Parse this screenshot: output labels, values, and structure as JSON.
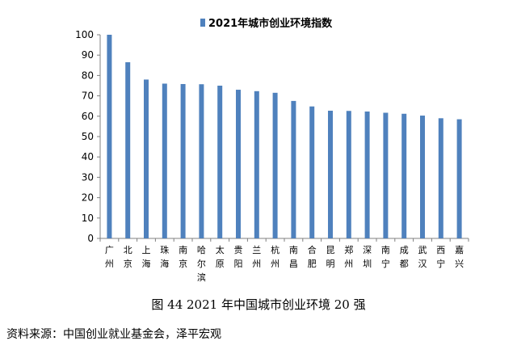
{
  "chart_data": {
    "type": "bar",
    "legend": "2021年城市创业环境指数",
    "legend_position": "top-center",
    "categories": [
      "广州",
      "北京",
      "上海",
      "珠海",
      "南京",
      "哈尔滨",
      "太原",
      "贵阳",
      "兰州",
      "杭州",
      "南昌",
      "合肥",
      "昆明",
      "郑州",
      "深圳",
      "南宁",
      "成都",
      "武汉",
      "西宁",
      "嘉兴"
    ],
    "series": [
      {
        "name": "2021年城市创业环境指数",
        "values": [
          100,
          86.5,
          78,
          76,
          75.8,
          75.7,
          75,
          73,
          72.3,
          71.5,
          67.5,
          64.8,
          62.7,
          62.6,
          62.3,
          61.7,
          61.2,
          60.3,
          59,
          58.5
        ]
      }
    ],
    "ylim": [
      0,
      100
    ],
    "yticks": [
      0,
      10,
      20,
      30,
      40,
      50,
      60,
      70,
      80,
      90,
      100
    ],
    "grid": false,
    "bar_color": "#4f81bd"
  },
  "caption": "图 44 2021 年中国城市创业环境 20 强",
  "source": "资料来源：中国创业就业基金会，泽平宏观"
}
